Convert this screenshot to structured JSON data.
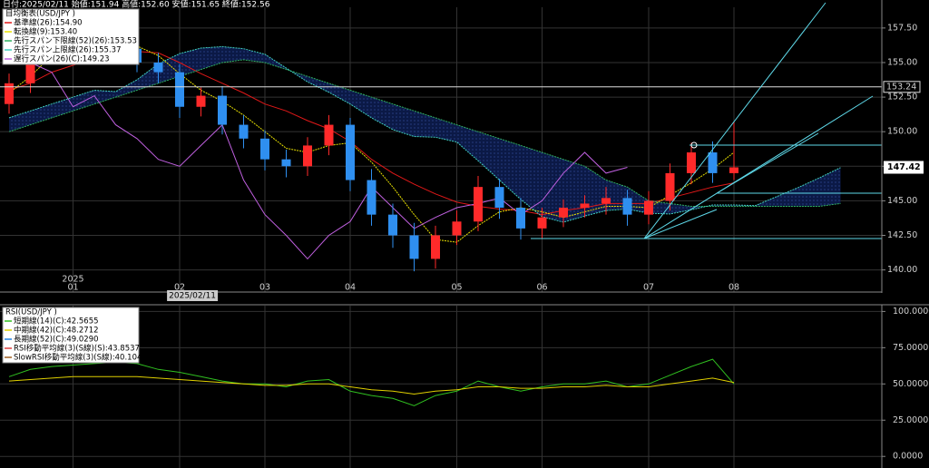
{
  "chart_data": [
    {
      "type": "candlestick",
      "title": "日付:2025/02/11 始値:151.94 高値:152.60 安値:151.65 終値:152.56",
      "legend_title": "目均衡表(USD/JPY )",
      "year_label": "2025",
      "cursor_label": "2025/02/11",
      "categories": [
        null,
        null,
        null,
        "01",
        null,
        null,
        null,
        null,
        "02",
        null,
        null,
        null,
        "03",
        null,
        null,
        null,
        "04",
        null,
        null,
        null,
        null,
        "05",
        null,
        null,
        null,
        "06",
        null,
        null,
        null,
        null,
        "07",
        null,
        null,
        null,
        "08",
        null,
        null,
        null,
        null,
        null
      ],
      "open": [
        152.0,
        153.5,
        156.0,
        157.0,
        156.5,
        157.3,
        156.0,
        155.0,
        154.3,
        151.8,
        152.6,
        150.5,
        149.5,
        148.0,
        147.5,
        149.0,
        150.5,
        146.5,
        144.0,
        142.5,
        140.8,
        142.5,
        143.5,
        146.0,
        144.5,
        143.0,
        143.8,
        144.5,
        144.8,
        145.2,
        144.0,
        145.0,
        147.0,
        148.5,
        147.0,
        null,
        null,
        null,
        null,
        null
      ],
      "high": [
        154.2,
        156.8,
        157.6,
        157.8,
        158.0,
        157.9,
        156.6,
        155.7,
        154.9,
        153.2,
        153.3,
        151.2,
        150.1,
        148.7,
        149.6,
        151.2,
        151.0,
        147.3,
        144.8,
        143.4,
        143.2,
        144.3,
        146.8,
        146.6,
        145.2,
        144.5,
        145.1,
        145.4,
        146.0,
        145.8,
        145.7,
        147.7,
        149.2,
        149.3,
        150.7,
        null,
        null,
        null,
        null,
        null
      ],
      "low": [
        151.3,
        152.8,
        155.3,
        155.8,
        155.9,
        155.2,
        154.3,
        153.5,
        151.0,
        151.1,
        149.8,
        148.8,
        147.2,
        146.7,
        146.8,
        148.3,
        145.7,
        143.2,
        141.6,
        139.9,
        140.1,
        141.8,
        142.8,
        143.7,
        142.2,
        142.3,
        143.1,
        143.8,
        144.0,
        143.2,
        143.3,
        144.3,
        146.2,
        146.3,
        146.5,
        null,
        null,
        null,
        null,
        null
      ],
      "close": [
        153.5,
        156.0,
        157.0,
        156.5,
        157.3,
        156.0,
        155.0,
        154.3,
        151.8,
        152.6,
        150.5,
        149.5,
        148.0,
        147.5,
        149.0,
        150.5,
        146.5,
        144.0,
        142.5,
        140.8,
        142.5,
        143.5,
        146.0,
        144.5,
        143.0,
        143.8,
        144.5,
        144.8,
        145.2,
        144.0,
        145.0,
        147.0,
        148.5,
        147.0,
        147.42,
        null,
        null,
        null,
        null,
        null
      ],
      "up_color": "#ff2a2a",
      "down_color": "#2f8ff0",
      "series": [
        {
          "name": "基準線(26):154.90",
          "color": "#e01818",
          "values": [
            153.0,
            153.5,
            154.3,
            154.8,
            155.3,
            155.6,
            155.8,
            155.7,
            155.0,
            154.2,
            153.5,
            152.8,
            152.0,
            151.5,
            150.8,
            150.2,
            149.3,
            148.0,
            147.0,
            146.2,
            145.5,
            144.9,
            144.6,
            144.4,
            144.3,
            144.0,
            144.3,
            144.5,
            144.8,
            144.8,
            144.8,
            145.2,
            145.6,
            146.0,
            146.3,
            null,
            null,
            null,
            null,
            null
          ]
        },
        {
          "name": "転換線(9):153.40",
          "color": "#e8e000",
          "values": [
            152.8,
            154.0,
            155.5,
            156.5,
            156.8,
            156.7,
            156.2,
            155.5,
            154.2,
            153.0,
            152.2,
            151.2,
            150.0,
            148.8,
            148.5,
            149.0,
            149.2,
            147.8,
            146.0,
            144.0,
            142.2,
            142.0,
            143.2,
            144.2,
            144.5,
            144.2,
            143.8,
            144.2,
            144.6,
            144.6,
            144.5,
            145.4,
            146.3,
            147.3,
            148.5,
            null,
            null,
            null,
            null,
            null
          ]
        },
        {
          "name": "先行スパン下限線(52)(26):153.53",
          "color": "#30b060",
          "values": [
            150.0,
            150.5,
            151.0,
            151.5,
            152.0,
            152.5,
            153.0,
            153.5,
            154.0,
            154.5,
            155.0,
            155.2,
            155.0,
            154.5,
            154.0,
            153.5,
            153.0,
            152.5,
            152.0,
            151.5,
            151.0,
            150.5,
            150.0,
            149.5,
            149.0,
            148.5,
            148.0,
            147.5,
            146.5,
            146.0,
            145.0,
            144.8,
            144.6,
            144.6,
            144.6,
            144.6,
            144.6,
            144.6,
            144.6,
            144.8
          ]
        },
        {
          "name": "先行スパン上限線(26):155.37",
          "color": "#40d0c0",
          "values": [
            151.0,
            151.5,
            152.0,
            152.5,
            153.0,
            152.9,
            153.75,
            154.9,
            155.65,
            156.05,
            156.15,
            156.0,
            155.6,
            154.6,
            153.6,
            152.85,
            152.0,
            151.0,
            150.15,
            149.65,
            149.6,
            149.25,
            147.9,
            146.5,
            145.1,
            143.85,
            143.45,
            143.9,
            144.3,
            144.4,
            144.1,
            144.05,
            144.35,
            144.7,
            144.7,
            144.65,
            145.3,
            145.95,
            146.65,
            147.4
          ]
        },
        {
          "name": "遅行スパン(26)(C):149.23",
          "color": "#c060e0",
          "values": [
            156.0,
            155.0,
            154.3,
            151.8,
            152.6,
            150.5,
            149.5,
            148.0,
            147.5,
            149.0,
            150.5,
            146.5,
            144.0,
            142.5,
            140.8,
            142.5,
            143.5,
            146.0,
            144.5,
            143.0,
            143.8,
            144.5,
            144.8,
            145.2,
            144.0,
            145.0,
            147.0,
            148.5,
            147.0,
            147.42,
            null,
            null,
            null,
            null,
            null,
            null,
            null,
            null,
            null,
            null
          ]
        }
      ],
      "cloud_color": "#10205a",
      "price_line": 153.24,
      "last_price": 147.42,
      "ylim": [
        138.4,
        159.0
      ],
      "yticks": [
        {
          "value": 140,
          "label": "140.00"
        },
        {
          "value": 142.5,
          "label": "142.50"
        },
        {
          "value": 145,
          "label": "145.00"
        },
        {
          "value": 147.5,
          "label": "147.50"
        },
        {
          "value": 150,
          "label": "150.00"
        },
        {
          "value": 152.5,
          "label": "152.50"
        },
        {
          "value": 155,
          "label": "155.00"
        },
        {
          "value": 157.5,
          "label": "157.50"
        }
      ]
    },
    {
      "type": "line",
      "legend_title": "RSI(USD/JPY )",
      "series": [
        {
          "name": "短期線(14)(C):42.5655",
          "color": "#30c020",
          "values": [
            55,
            60,
            62,
            63,
            64,
            65,
            64,
            60,
            58,
            55,
            52,
            50,
            50,
            48,
            52,
            53,
            45,
            42,
            40,
            35,
            42,
            45,
            52,
            48,
            45,
            48,
            50,
            50,
            52,
            48,
            50,
            56,
            62,
            67,
            50,
            null,
            null,
            null,
            null,
            null
          ]
        },
        {
          "name": "中期線(42)(C):48.2712",
          "color": "#e0d000",
          "values": [
            52,
            53,
            54,
            55,
            55,
            55,
            55,
            54,
            53,
            52,
            51,
            50,
            49,
            49,
            50,
            50,
            48,
            46,
            45,
            43,
            45,
            46,
            48,
            48,
            47,
            47,
            48,
            48,
            49,
            48,
            48,
            50,
            52,
            54,
            51,
            null,
            null,
            null,
            null,
            null
          ]
        }
      ],
      "legend_extra": [
        {
          "name": "長期線(52)(C):49.0290",
          "color": "#2080e0"
        },
        {
          "name": "RSI移動平均線(3)(S線)(S):43.8537",
          "color": "#e04040"
        },
        {
          "name": "SlowRSI移動平均線(3)(S線):40.1042",
          "color": "#a06020"
        }
      ],
      "ylim": [
        -8,
        104
      ],
      "yticks": [
        {
          "value": 0,
          "label": "0.0000"
        },
        {
          "value": 25,
          "label": "25.0000"
        },
        {
          "value": 50,
          "label": "50.0000"
        },
        {
          "value": 75,
          "label": "75.0000"
        },
        {
          "value": 100,
          "label": "100.0000"
        }
      ]
    }
  ]
}
